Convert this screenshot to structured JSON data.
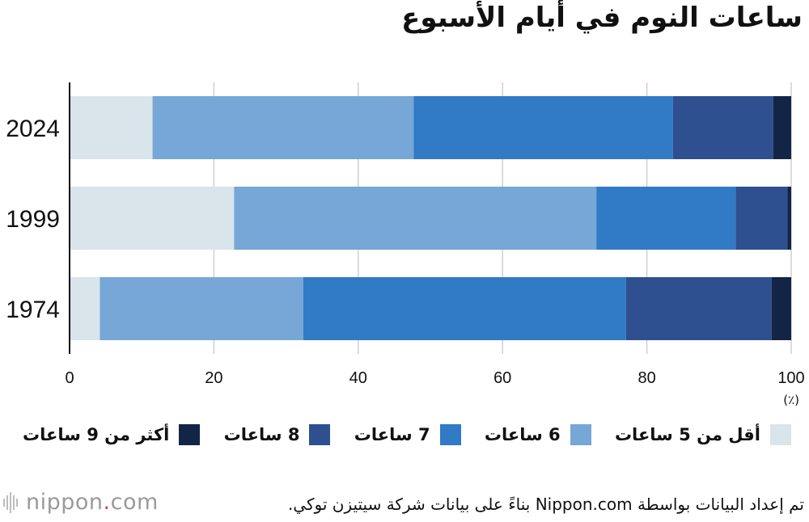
{
  "chart_data": {
    "type": "bar",
    "orientation": "horizontal",
    "stacked": true,
    "title": "ساعات النوم في أيام الأسبوع",
    "unit_label": "(٪)",
    "categories": [
      "2024",
      "1999",
      "1974"
    ],
    "xlim": [
      0,
      100
    ],
    "xticks": [
      0,
      20,
      40,
      60,
      80,
      100
    ],
    "grid": true,
    "legend_position": "bottom",
    "series": [
      {
        "name": "أقل من 5 ساعات",
        "color": "#d9e5eb",
        "values": [
          11.5,
          22.8,
          4.2
        ]
      },
      {
        "name": "6 ساعات",
        "color": "#76a7d7",
        "values": [
          36.2,
          50.2,
          28.2
        ]
      },
      {
        "name": "7 ساعات",
        "color": "#317ac6",
        "values": [
          35.9,
          19.3,
          44.7
        ]
      },
      {
        "name": "8 ساعات",
        "color": "#2e5090",
        "values": [
          13.9,
          7.2,
          20.2
        ]
      },
      {
        "name": "أكثر من 9 ساعات",
        "color": "#132547",
        "values": [
          2.5,
          0.5,
          2.7
        ]
      }
    ]
  },
  "source": "تم إعداد البيانات بواسطة Nippon.com بناءً على بيانات شركة سيتيزن توكي.",
  "logo": {
    "name": "nippon",
    "dot": ".",
    "suffix": "com"
  }
}
